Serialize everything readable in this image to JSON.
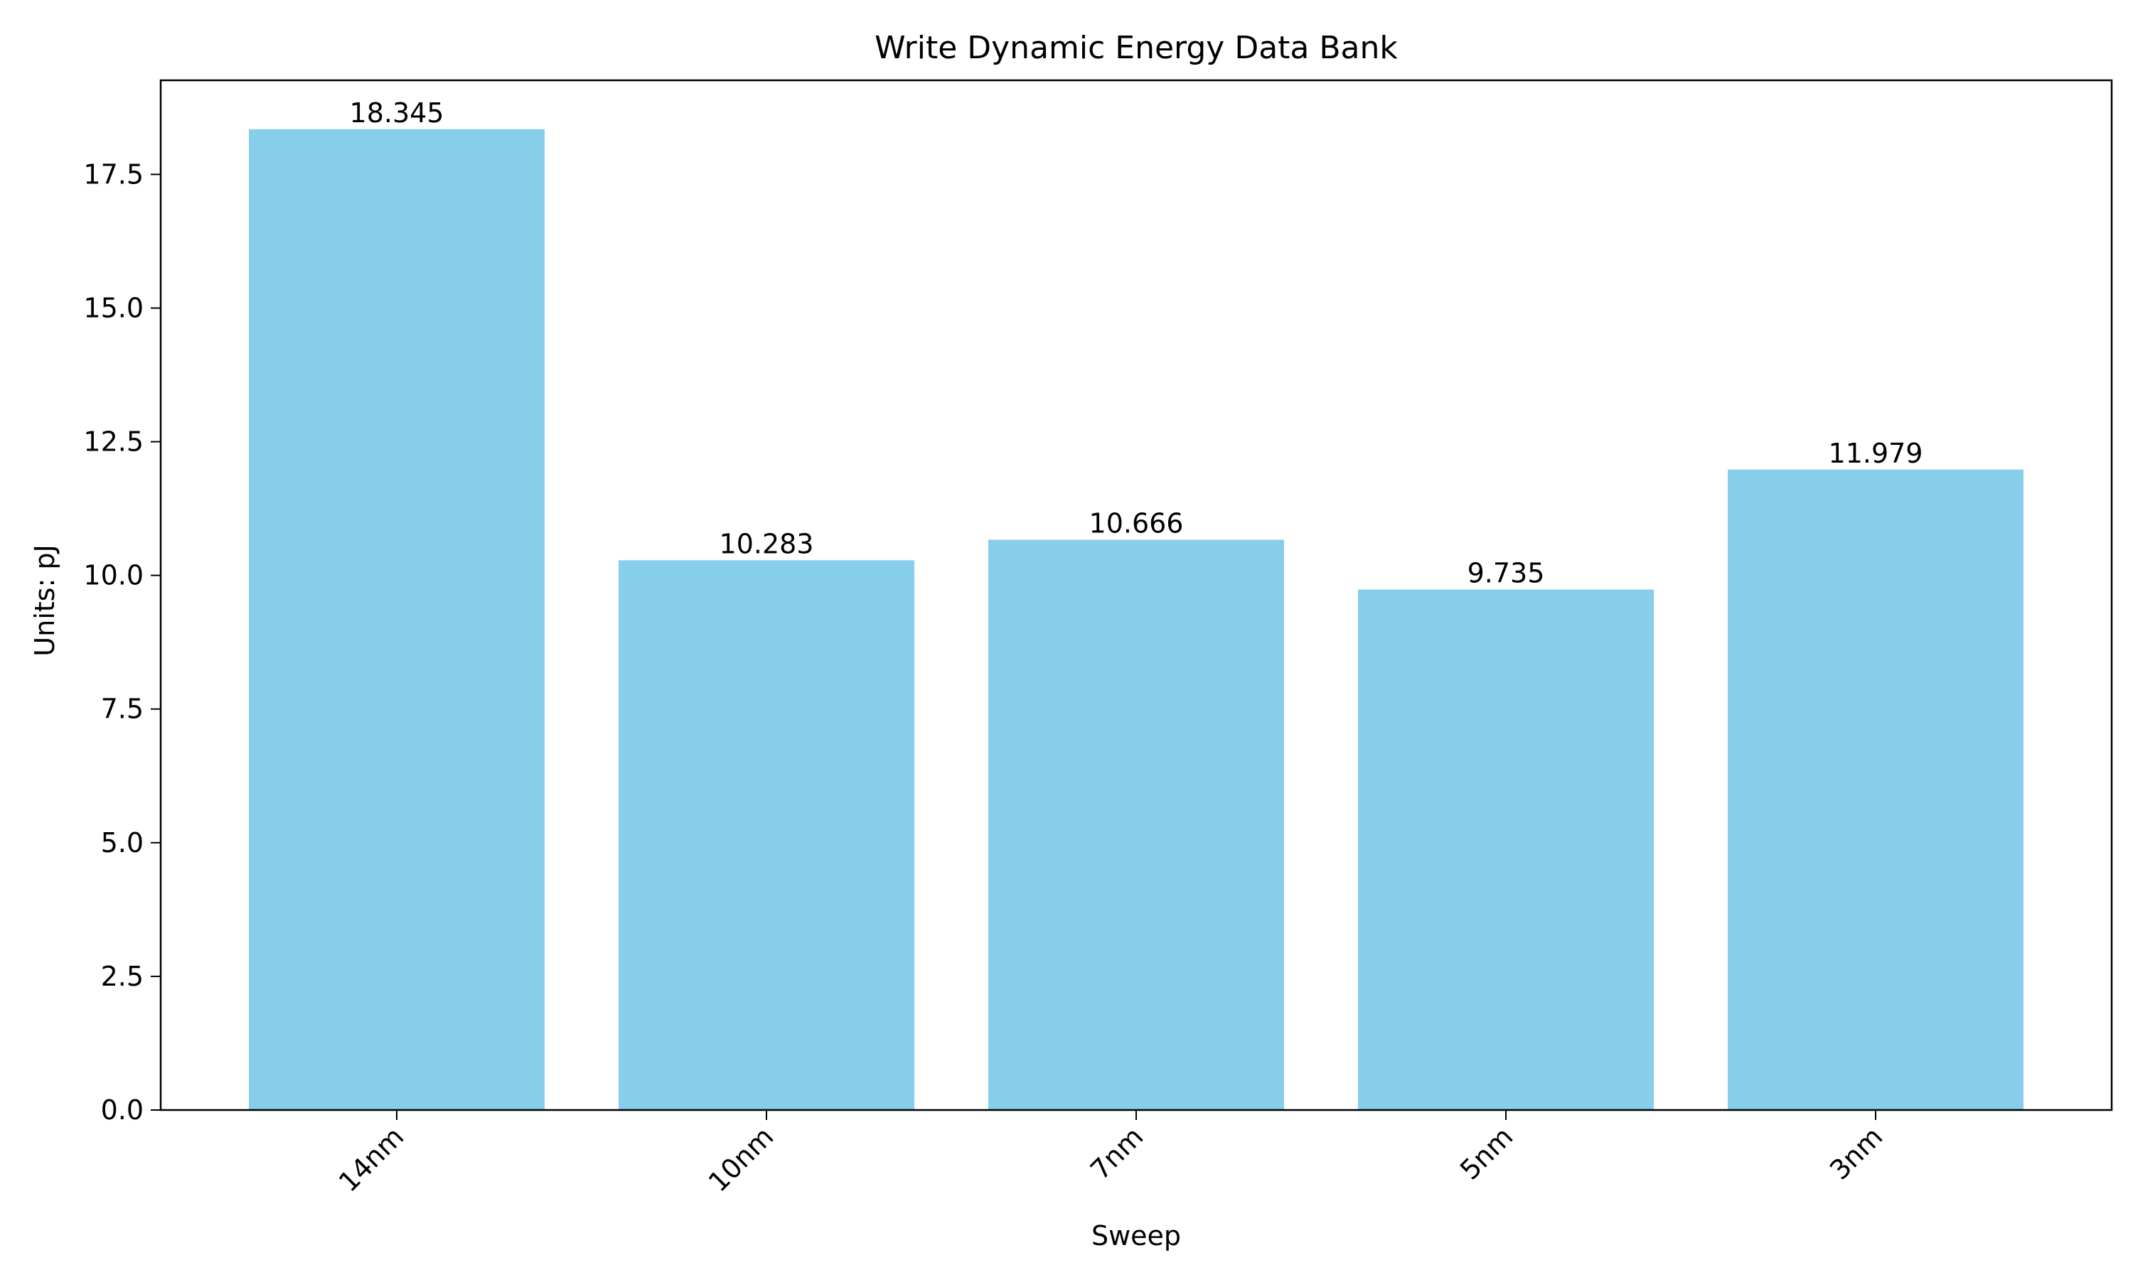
{
  "chart_data": {
    "type": "bar",
    "title": "Write Dynamic Energy Data Bank",
    "xlabel": "Sweep",
    "ylabel": "Units: pJ",
    "categories": [
      "14nm",
      "10nm",
      "7nm",
      "5nm",
      "3nm"
    ],
    "values": [
      18.345,
      10.283,
      10.666,
      9.735,
      11.979
    ],
    "data_labels": [
      "18.345",
      "10.283",
      "10.666",
      "9.735",
      "11.979"
    ],
    "ylim": [
      0,
      19.26
    ],
    "yticks": [
      0,
      2.5,
      5,
      7.5,
      10,
      12.5,
      15,
      17.5
    ],
    "ytick_labels": [
      "0.0",
      "2.5",
      "5.0",
      "7.5",
      "10.0",
      "12.5",
      "15.0",
      "17.5"
    ],
    "bar_color": "#87CEEB",
    "grid": false,
    "legend": "none"
  }
}
